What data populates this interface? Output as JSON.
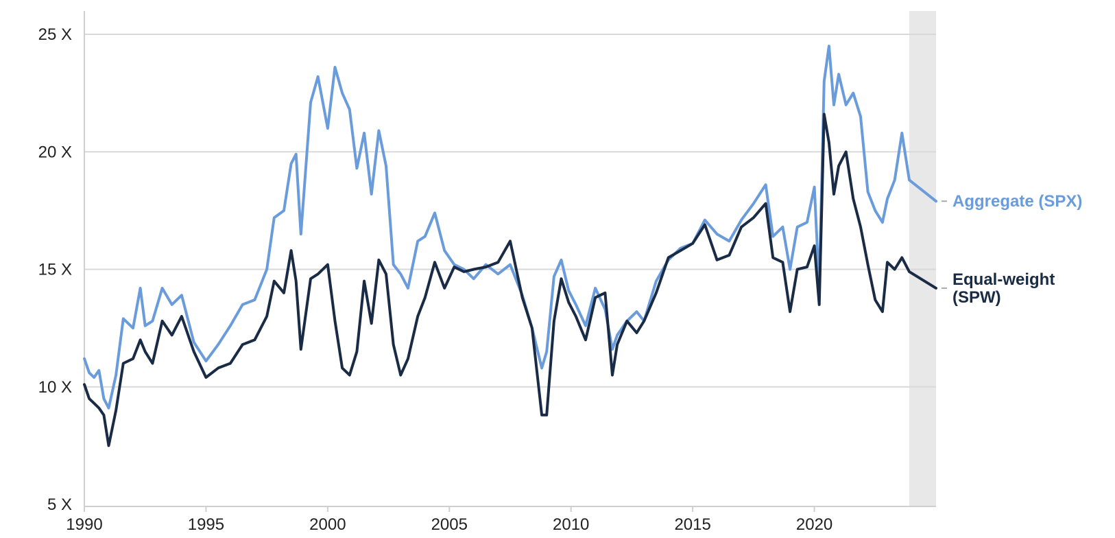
{
  "chart_data": {
    "type": "line",
    "title": "",
    "xlabel": "",
    "ylabel": "",
    "x_ticks": [
      "1990",
      "1995",
      "2000",
      "2005",
      "2010",
      "2015",
      "2020"
    ],
    "y_ticks": [
      "5 X",
      "10 X",
      "15 X",
      "20 X",
      "25 X"
    ],
    "xlim": [
      1990,
      2025
    ],
    "ylim": [
      5,
      25
    ],
    "grid": "horizontal",
    "legend": "right",
    "shaded_region": {
      "start": 2023.9,
      "end": 2025,
      "color": "#e8e8e8"
    },
    "series": [
      {
        "name": "Aggregate (SPX)",
        "color": "#6a9bdb",
        "x": [
          1990,
          1990.2,
          1990.4,
          1990.6,
          1990.8,
          1991.0,
          1991.3,
          1991.6,
          1992.0,
          1992.3,
          1992.5,
          1992.8,
          1993.2,
          1993.6,
          1994.0,
          1994.5,
          1995.0,
          1995.5,
          1996.0,
          1996.5,
          1997.0,
          1997.5,
          1997.8,
          1998.2,
          1998.5,
          1998.7,
          1998.9,
          1999.3,
          1999.6,
          2000.0,
          2000.3,
          2000.6,
          2000.9,
          2001.2,
          2001.5,
          2001.8,
          2002.1,
          2002.4,
          2002.7,
          2003.0,
          2003.3,
          2003.7,
          2004.0,
          2004.4,
          2004.8,
          2005.2,
          2005.6,
          2006.0,
          2006.5,
          2007.0,
          2007.5,
          2008.0,
          2008.4,
          2008.8,
          2009.0,
          2009.3,
          2009.6,
          2009.9,
          2010.2,
          2010.6,
          2011.0,
          2011.4,
          2011.7,
          2011.9,
          2012.3,
          2012.7,
          2013.0,
          2013.5,
          2014.0,
          2014.5,
          2015.0,
          2015.5,
          2016.0,
          2016.5,
          2017.0,
          2017.5,
          2018.0,
          2018.3,
          2018.7,
          2019.0,
          2019.3,
          2019.7,
          2020.0,
          2020.2,
          2020.4,
          2020.6,
          2020.8,
          2021.0,
          2021.3,
          2021.6,
          2021.9,
          2022.2,
          2022.5,
          2022.8,
          2023.0,
          2023.3,
          2023.6,
          2023.9,
          2025.0
        ],
        "values": [
          11.2,
          10.6,
          10.4,
          10.7,
          9.5,
          9.1,
          10.5,
          12.9,
          12.5,
          14.2,
          12.6,
          12.8,
          14.2,
          13.5,
          13.9,
          11.9,
          11.1,
          11.8,
          12.6,
          13.5,
          13.7,
          15.0,
          17.2,
          17.5,
          19.5,
          19.9,
          16.5,
          22.1,
          23.2,
          21.0,
          23.6,
          22.5,
          21.8,
          19.3,
          20.8,
          18.2,
          20.9,
          19.4,
          15.2,
          14.8,
          14.2,
          16.2,
          16.4,
          17.4,
          15.8,
          15.2,
          15.0,
          14.6,
          15.2,
          14.8,
          15.2,
          13.9,
          12.5,
          10.8,
          11.5,
          14.7,
          15.4,
          14.1,
          13.5,
          12.6,
          14.2,
          13.3,
          11.6,
          12.2,
          12.8,
          13.2,
          12.8,
          14.5,
          15.4,
          15.9,
          16.1,
          17.1,
          16.5,
          16.2,
          17.1,
          17.8,
          18.6,
          16.4,
          16.8,
          15.0,
          16.8,
          17.0,
          18.5,
          14.2,
          23.0,
          24.5,
          22.0,
          23.3,
          22.0,
          22.5,
          21.5,
          18.3,
          17.5,
          17.0,
          18.0,
          18.8,
          20.8,
          18.8,
          17.9
        ]
      },
      {
        "name": "Equal-weight (SPW)",
        "color": "#1a2b45",
        "x": [
          1990,
          1990.2,
          1990.4,
          1990.6,
          1990.8,
          1991.0,
          1991.3,
          1991.6,
          1992.0,
          1992.3,
          1992.5,
          1992.8,
          1993.2,
          1993.6,
          1994.0,
          1994.5,
          1995.0,
          1995.5,
          1996.0,
          1996.5,
          1997.0,
          1997.5,
          1997.8,
          1998.2,
          1998.5,
          1998.7,
          1998.9,
          1999.3,
          1999.6,
          2000.0,
          2000.3,
          2000.6,
          2000.9,
          2001.2,
          2001.5,
          2001.8,
          2002.1,
          2002.4,
          2002.7,
          2003.0,
          2003.3,
          2003.7,
          2004.0,
          2004.4,
          2004.8,
          2005.2,
          2005.6,
          2006.0,
          2006.5,
          2007.0,
          2007.5,
          2008.0,
          2008.4,
          2008.8,
          2009.0,
          2009.3,
          2009.6,
          2009.9,
          2010.2,
          2010.6,
          2011.0,
          2011.4,
          2011.7,
          2011.9,
          2012.3,
          2012.7,
          2013.0,
          2013.5,
          2014.0,
          2014.5,
          2015.0,
          2015.5,
          2016.0,
          2016.5,
          2017.0,
          2017.5,
          2018.0,
          2018.3,
          2018.7,
          2019.0,
          2019.3,
          2019.7,
          2020.0,
          2020.2,
          2020.4,
          2020.6,
          2020.8,
          2021.0,
          2021.3,
          2021.6,
          2021.9,
          2022.2,
          2022.5,
          2022.8,
          2023.0,
          2023.3,
          2023.6,
          2023.9,
          2025.0
        ],
        "values": [
          10.1,
          9.5,
          9.3,
          9.1,
          8.8,
          7.5,
          9.0,
          11.0,
          11.2,
          12.0,
          11.5,
          11.0,
          12.8,
          12.2,
          13.0,
          11.5,
          10.4,
          10.8,
          11.0,
          11.8,
          12.0,
          13.0,
          14.5,
          14.0,
          15.8,
          14.5,
          11.6,
          14.6,
          14.8,
          15.2,
          12.8,
          10.8,
          10.5,
          11.5,
          14.5,
          12.7,
          15.4,
          14.8,
          11.8,
          10.5,
          11.2,
          13.0,
          13.8,
          15.3,
          14.2,
          15.1,
          14.9,
          15.0,
          15.1,
          15.3,
          16.2,
          13.8,
          12.5,
          8.8,
          8.8,
          12.8,
          14.6,
          13.6,
          13.0,
          12.0,
          13.8,
          14.0,
          10.5,
          11.8,
          12.8,
          12.3,
          12.8,
          14.0,
          15.5,
          15.8,
          16.1,
          16.9,
          15.4,
          15.6,
          16.8,
          17.2,
          17.8,
          15.5,
          15.3,
          13.2,
          15.0,
          15.1,
          16.0,
          13.5,
          21.6,
          20.4,
          18.2,
          19.4,
          20.0,
          18.0,
          16.8,
          15.2,
          13.7,
          13.2,
          15.3,
          15.0,
          15.5,
          14.9,
          14.2
        ]
      }
    ]
  }
}
